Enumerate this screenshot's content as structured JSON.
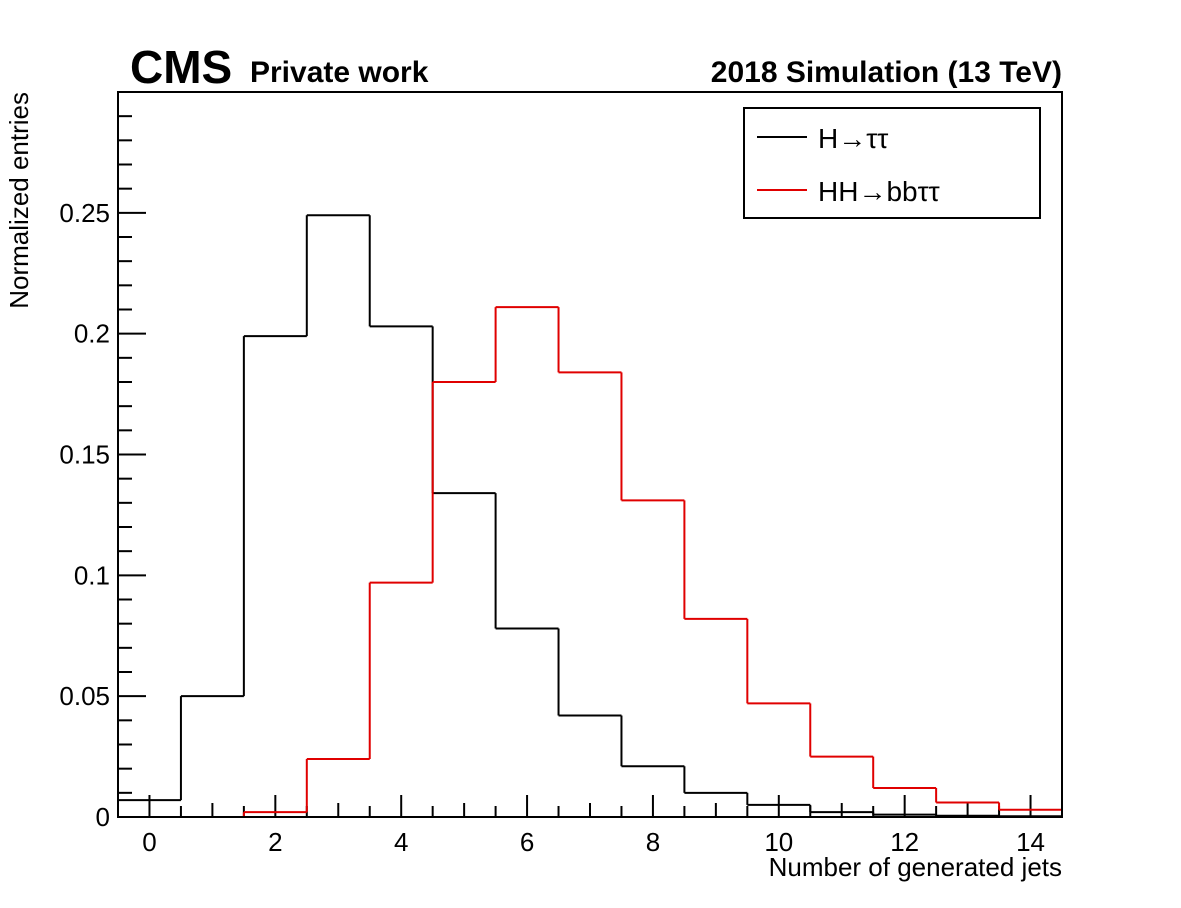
{
  "header": {
    "experiment": "CMS",
    "status": "Private work",
    "right_label": "2018 Simulation (13 TeV)"
  },
  "chart_data": {
    "type": "histogram",
    "xlabel": "Number of generated jets",
    "ylabel": "Normalized entries",
    "xlim": [
      -0.5,
      14.5
    ],
    "ylim": [
      0,
      0.3
    ],
    "x_ticks": [
      0,
      2,
      4,
      6,
      8,
      10,
      12,
      14
    ],
    "y_ticks": [
      0,
      0.05,
      0.1,
      0.15,
      0.2,
      0.25
    ],
    "y_tick_labels": [
      "0",
      "0.05",
      "0.1",
      "0.15",
      "0.2",
      "0.25"
    ],
    "bin_edges": [
      -0.5,
      0.5,
      1.5,
      2.5,
      3.5,
      4.5,
      5.5,
      6.5,
      7.5,
      8.5,
      9.5,
      10.5,
      11.5,
      12.5,
      13.5,
      14.5
    ],
    "legend_position": "top-right",
    "grid": false,
    "series": [
      {
        "name": "H→ττ",
        "color": "#000000",
        "values": [
          0.007,
          0.05,
          0.199,
          0.249,
          0.203,
          0.134,
          0.078,
          0.042,
          0.021,
          0.01,
          0.005,
          0.002,
          0.001,
          0.0005,
          0.0003
        ]
      },
      {
        "name": "HH→bbττ",
        "color": "#e00000",
        "values": [
          0.0,
          0.0,
          0.002,
          0.024,
          0.097,
          0.18,
          0.211,
          0.184,
          0.131,
          0.082,
          0.047,
          0.025,
          0.012,
          0.006,
          0.003
        ]
      }
    ]
  }
}
